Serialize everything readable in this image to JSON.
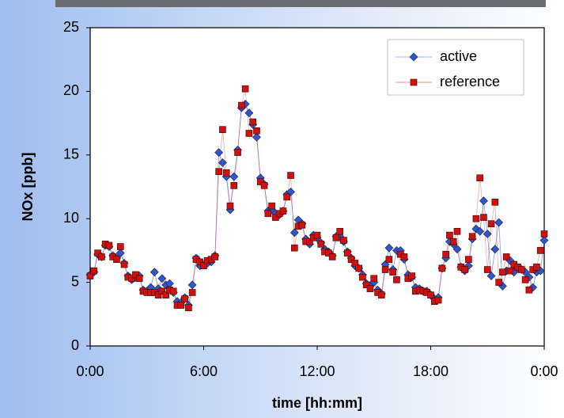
{
  "chart_data": {
    "type": "line",
    "xlabel": "time [hh:mm]",
    "ylabel": "NOx [ppb]",
    "x": [
      0,
      0.2,
      0.4,
      0.6,
      0.8,
      1,
      1.2,
      1.4,
      1.6,
      1.8,
      2,
      2.2,
      2.4,
      2.6,
      2.8,
      3,
      3.2,
      3.4,
      3.6,
      3.8,
      4,
      4.2,
      4.4,
      4.6,
      4.8,
      5,
      5.2,
      5.4,
      5.6,
      5.8,
      6,
      6.2,
      6.4,
      6.6,
      6.8,
      7,
      7.2,
      7.4,
      7.6,
      7.8,
      8,
      8.2,
      8.4,
      8.6,
      8.8,
      9,
      9.2,
      9.4,
      9.6,
      9.8,
      10,
      10.2,
      10.4,
      10.6,
      10.8,
      11,
      11.2,
      11.4,
      11.6,
      11.8,
      12,
      12.2,
      12.4,
      12.6,
      12.8,
      13,
      13.2,
      13.4,
      13.6,
      13.8,
      14,
      14.2,
      14.4,
      14.6,
      14.8,
      15,
      15.2,
      15.4,
      15.6,
      15.8,
      16,
      16.2,
      16.4,
      16.6,
      16.8,
      17,
      17.2,
      17.4,
      17.6,
      17.8,
      18,
      18.2,
      18.4,
      18.6,
      18.8,
      19,
      19.2,
      19.4,
      19.6,
      19.8,
      20,
      20.2,
      20.4,
      20.6,
      20.8,
      21,
      21.2,
      21.4,
      21.6,
      21.8,
      22,
      22.2,
      22.4,
      22.6,
      22.8,
      23,
      23.2,
      23.4,
      23.6,
      23.8,
      24
    ],
    "series": [
      {
        "name": "active",
        "color": "#3355cc",
        "marker": "diamond",
        "values": [
          5.6,
          5.8,
          7.2,
          7.0,
          7.9,
          7.8,
          7.1,
          6.9,
          7.3,
          6.5,
          5.5,
          5.2,
          5.4,
          5.5,
          4.4,
          4.3,
          4.6,
          5.8,
          4.5,
          5.3,
          4.8,
          4.9,
          4.2,
          3.5,
          3.4,
          3.8,
          3.2,
          4.8,
          6.9,
          6.3,
          6.4,
          6.5,
          6.6,
          7.1,
          15.2,
          14.4,
          13.3,
          10.7,
          13.3,
          15.4,
          18.7,
          19.0,
          18.3,
          17.4,
          16.4,
          13.2,
          12.7,
          10.6,
          10.7,
          10.4,
          10.3,
          10.6,
          11.9,
          12.1,
          8.9,
          9.9,
          9.6,
          8.4,
          8.0,
          8.7,
          8.5,
          8.1,
          7.6,
          7.4,
          7.1,
          8.6,
          8.6,
          8.2,
          7.4,
          6.9,
          6.3,
          6.1,
          5.6,
          4.9,
          4.7,
          5.0,
          4.4,
          4.1,
          6.4,
          7.7,
          6.0,
          7.5,
          7.5,
          6.8,
          5.6,
          5.4,
          4.6,
          4.5,
          4.3,
          4.3,
          4.0,
          3.7,
          3.8,
          6.1,
          6.9,
          8.2,
          8.0,
          7.6,
          6.2,
          5.9,
          6.3,
          8.4,
          9.2,
          9.0,
          11.4,
          8.8,
          5.5,
          7.6,
          9.7,
          4.7,
          5.9,
          6.7,
          5.8,
          6.1,
          6.0,
          5.8,
          5.4,
          4.6,
          5.8,
          5.9,
          8.3
        ]
      },
      {
        "name": "reference",
        "color": "#cc1111",
        "marker": "square",
        "values": [
          5.5,
          5.9,
          7.3,
          7.0,
          8.0,
          7.9,
          7.0,
          6.8,
          7.8,
          6.4,
          5.4,
          5.3,
          5.6,
          5.3,
          4.3,
          4.2,
          4.2,
          4.2,
          4.0,
          4.3,
          4.0,
          4.4,
          4.3,
          3.2,
          3.2,
          3.7,
          3.0,
          4.2,
          6.8,
          6.6,
          6.3,
          6.7,
          6.8,
          7.0,
          13.7,
          17.0,
          13.6,
          11.0,
          12.6,
          15.2,
          18.9,
          20.2,
          16.7,
          17.6,
          16.9,
          12.9,
          12.6,
          10.4,
          11.0,
          10.1,
          10.4,
          10.6,
          11.7,
          13.4,
          7.7,
          9.4,
          9.5,
          8.2,
          8.2,
          8.5,
          8.7,
          8.0,
          7.4,
          7.3,
          7.0,
          8.5,
          9.0,
          8.3,
          7.3,
          6.8,
          6.5,
          6.1,
          5.4,
          4.8,
          4.5,
          5.3,
          4.2,
          4.0,
          6.0,
          6.8,
          5.8,
          5.2,
          7.2,
          7.0,
          5.3,
          5.5,
          4.3,
          4.4,
          4.3,
          4.2,
          4.0,
          3.5,
          3.6,
          6.1,
          7.2,
          8.7,
          8.2,
          9.0,
          6.2,
          6.0,
          6.8,
          8.6,
          10.0,
          13.2,
          10.1,
          6.0,
          9.6,
          11.3,
          5.0,
          5.8,
          7.0,
          5.9,
          6.4,
          6.2,
          6.0,
          5.2,
          4.4,
          6.0,
          6.2,
          7.5,
          8.8
        ]
      }
    ],
    "xlim": [
      0,
      24
    ],
    "xticks": [
      {
        "value": 0,
        "label": "0:00"
      },
      {
        "value": 6,
        "label": "6:00"
      },
      {
        "value": 12,
        "label": "12:00"
      },
      {
        "value": 18,
        "label": "18:00"
      },
      {
        "value": 24,
        "label": "0:00"
      }
    ],
    "ylim": [
      0,
      25
    ],
    "yticks": [
      0,
      5,
      10,
      15,
      20,
      25
    ],
    "grid": false,
    "legend": "upper right"
  }
}
